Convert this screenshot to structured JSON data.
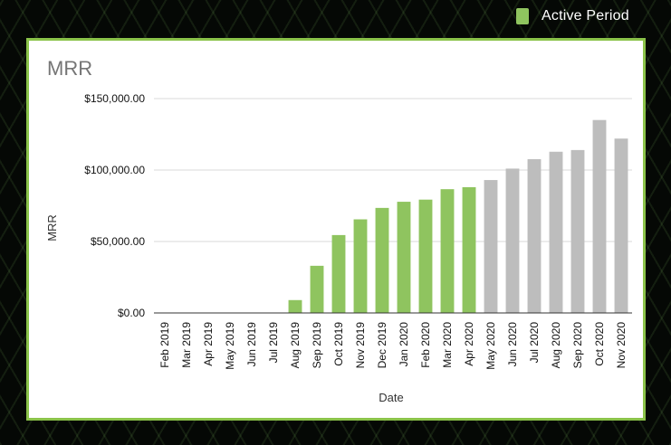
{
  "legend": {
    "label": "Active Period",
    "color": "#8fc45f"
  },
  "chart_data": {
    "type": "bar",
    "title": "MRR",
    "xlabel": "Date",
    "ylabel": "MRR",
    "ylim": [
      0,
      150000
    ],
    "yticks": [
      0,
      50000,
      100000,
      150000
    ],
    "ytick_labels": [
      "$0.00",
      "$50,000.00",
      "$100,000.00",
      "$150,000.00"
    ],
    "grid": true,
    "categories": [
      "Feb 2019",
      "Mar 2019",
      "Apr 2019",
      "May 2019",
      "Jun 2019",
      "Jul 2019",
      "Aug 2019",
      "Sep 2019",
      "Oct 2019",
      "Nov 2019",
      "Dec 2019",
      "Jan 2020",
      "Feb 2020",
      "Mar 2020",
      "Apr 2020",
      "May 2020",
      "Jun 2020",
      "Jul 2020",
      "Aug 2020",
      "Sep 2020",
      "Oct 2020",
      "Nov 2020"
    ],
    "values": [
      0,
      0,
      0,
      0,
      0,
      0,
      9000,
      33000,
      54500,
      65500,
      73500,
      77800,
      79300,
      86600,
      88000,
      93000,
      101000,
      107600,
      112800,
      114000,
      135000,
      122000
    ],
    "active": [
      false,
      false,
      false,
      false,
      false,
      false,
      true,
      true,
      true,
      true,
      true,
      true,
      true,
      true,
      true,
      false,
      false,
      false,
      false,
      false,
      false,
      false
    ],
    "active_color": "#8fc45f",
    "inactive_color": "#bdbdbd"
  }
}
